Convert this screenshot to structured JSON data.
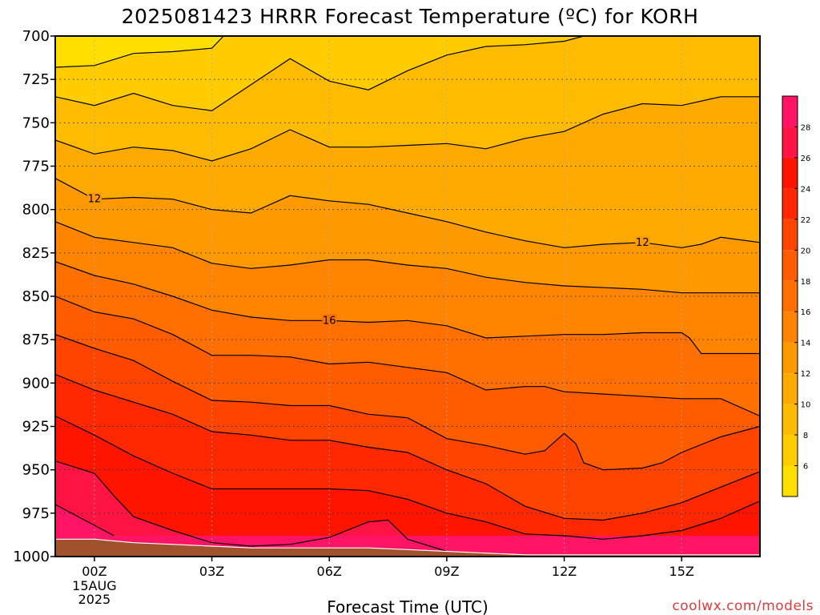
{
  "chart_data": {
    "type": "heatmap",
    "title": "2025081423 HRRR Forecast Temperature (ºC) for KORH",
    "xlabel": "Forecast Time (UTC)",
    "ylabel": "",
    "x_ticks": [
      {
        "hour": 0,
        "label": "00Z",
        "sub": [
          "15AUG",
          "2025"
        ]
      },
      {
        "hour": 3,
        "label": "03Z"
      },
      {
        "hour": 6,
        "label": "06Z"
      },
      {
        "hour": 9,
        "label": "09Z"
      },
      {
        "hour": 12,
        "label": "12Z"
      },
      {
        "hour": 15,
        "label": "15Z"
      }
    ],
    "xlim": [
      -1,
      17
    ],
    "y_ticks": [
      700,
      725,
      750,
      775,
      800,
      825,
      850,
      875,
      900,
      925,
      950,
      975,
      1000
    ],
    "ylim": [
      1000,
      700
    ],
    "grid": "dotted",
    "colorbar": {
      "position": "right",
      "ticks": [
        6,
        8,
        10,
        12,
        14,
        16,
        18,
        20,
        22,
        24,
        26,
        28
      ],
      "range": [
        4,
        30
      ],
      "colors": [
        "#ffdf00",
        "#ffcc00",
        "#ffbb00",
        "#ffaa00",
        "#ff9900",
        "#ff8500",
        "#ff7000",
        "#ff5c00",
        "#ff4400",
        "#ff2800",
        "#ff1400",
        "#ff1444",
        "#ff1466",
        "#ff1188",
        "#ff11aa"
      ]
    },
    "contour_interval": 2,
    "contour_labels": [
      {
        "value": 12,
        "hour": 0,
        "pressure": 794
      },
      {
        "value": 12,
        "hour": 14,
        "pressure": 819
      },
      {
        "value": 16,
        "hour": 6,
        "pressure": 864
      }
    ],
    "series": [
      {
        "value": 6,
        "points": [
          [
            -1,
            718
          ],
          [
            0,
            717
          ],
          [
            1,
            710
          ],
          [
            2,
            709
          ],
          [
            3,
            707
          ],
          [
            3.3,
            700
          ]
        ]
      },
      {
        "value": 8,
        "points": [
          [
            -1,
            735
          ],
          [
            0,
            740
          ],
          [
            1,
            733
          ],
          [
            2,
            740
          ],
          [
            3,
            743
          ],
          [
            4,
            728
          ],
          [
            5,
            713
          ],
          [
            6,
            726
          ],
          [
            7,
            731
          ],
          [
            8,
            720
          ],
          [
            9,
            711
          ],
          [
            10,
            706
          ],
          [
            11,
            705
          ],
          [
            12,
            703
          ],
          [
            12.5,
            700
          ]
        ]
      },
      {
        "value": 10,
        "points": [
          [
            -1,
            760
          ],
          [
            0,
            768
          ],
          [
            1,
            764
          ],
          [
            2,
            766
          ],
          [
            3,
            772
          ],
          [
            4,
            765
          ],
          [
            5,
            754
          ],
          [
            6,
            764
          ],
          [
            7,
            764
          ],
          [
            8,
            763
          ],
          [
            9,
            762
          ],
          [
            10,
            765
          ],
          [
            11,
            759
          ],
          [
            12,
            755
          ],
          [
            13,
            745
          ],
          [
            14,
            739
          ],
          [
            15,
            740
          ],
          [
            16,
            735
          ],
          [
            17,
            735
          ]
        ]
      },
      {
        "value": 12,
        "points": [
          [
            -1,
            782
          ],
          [
            0,
            794
          ],
          [
            1,
            793
          ],
          [
            2,
            794
          ],
          [
            3,
            800
          ],
          [
            4,
            802
          ],
          [
            5,
            792
          ],
          [
            6,
            795
          ],
          [
            7,
            797
          ],
          [
            8,
            802
          ],
          [
            9,
            807
          ],
          [
            10,
            813
          ],
          [
            11,
            818
          ],
          [
            12,
            822
          ],
          [
            13,
            820
          ],
          [
            14,
            819
          ],
          [
            15,
            822
          ],
          [
            15.5,
            820
          ],
          [
            16,
            816
          ],
          [
            17,
            819
          ]
        ]
      },
      {
        "value": 14,
        "points": [
          [
            -1,
            807
          ],
          [
            0,
            816
          ],
          [
            1,
            819
          ],
          [
            2,
            822
          ],
          [
            3,
            831
          ],
          [
            4,
            834
          ],
          [
            5,
            832
          ],
          [
            6,
            829
          ],
          [
            7,
            829
          ],
          [
            8,
            832
          ],
          [
            9,
            834
          ],
          [
            10,
            839
          ],
          [
            11,
            842
          ],
          [
            12,
            844
          ],
          [
            14,
            846
          ],
          [
            15,
            848
          ],
          [
            16,
            848
          ],
          [
            17,
            848
          ]
        ]
      },
      {
        "value": 16,
        "points": [
          [
            -1,
            830
          ],
          [
            0,
            838
          ],
          [
            1,
            843
          ],
          [
            2,
            850
          ],
          [
            3,
            858
          ],
          [
            4,
            862
          ],
          [
            5,
            864
          ],
          [
            6,
            864
          ],
          [
            7,
            865
          ],
          [
            8,
            864
          ],
          [
            9,
            867
          ],
          [
            10,
            874
          ],
          [
            11,
            873
          ],
          [
            12,
            872
          ],
          [
            13,
            872
          ],
          [
            14,
            871
          ],
          [
            15,
            871
          ],
          [
            15.2,
            874
          ],
          [
            15.5,
            883
          ],
          [
            16,
            883
          ],
          [
            17,
            883
          ]
        ]
      },
      {
        "value": 18,
        "points": [
          [
            -1,
            850
          ],
          [
            0,
            859
          ],
          [
            1,
            863
          ],
          [
            2,
            872
          ],
          [
            3,
            884
          ],
          [
            4,
            884
          ],
          [
            5,
            885
          ],
          [
            6,
            889
          ],
          [
            7,
            888
          ],
          [
            8,
            891
          ],
          [
            9,
            894
          ],
          [
            10,
            904
          ],
          [
            11,
            902
          ],
          [
            11.5,
            902
          ],
          [
            12,
            905
          ],
          [
            15,
            909
          ],
          [
            16,
            909
          ],
          [
            17,
            919
          ]
        ]
      },
      {
        "value": 20,
        "points": [
          [
            -1,
            872
          ],
          [
            0,
            880
          ],
          [
            1,
            887
          ],
          [
            2,
            899
          ],
          [
            3,
            910
          ],
          [
            4,
            911
          ],
          [
            5,
            913
          ],
          [
            6,
            913
          ],
          [
            7,
            918
          ],
          [
            8,
            920
          ],
          [
            9,
            932
          ],
          [
            10,
            936
          ],
          [
            11,
            941
          ],
          [
            11.5,
            939
          ],
          [
            12,
            929
          ],
          [
            12.3,
            935
          ],
          [
            12.5,
            946
          ],
          [
            13,
            950
          ],
          [
            14,
            949
          ],
          [
            14.5,
            946
          ],
          [
            15,
            940
          ],
          [
            16,
            931
          ],
          [
            17,
            925
          ]
        ]
      },
      {
        "value": 22,
        "points": [
          [
            -1,
            895
          ],
          [
            0,
            904
          ],
          [
            1,
            911
          ],
          [
            2,
            918
          ],
          [
            3,
            928
          ],
          [
            4,
            930
          ],
          [
            5,
            933
          ],
          [
            6,
            933
          ],
          [
            7,
            937
          ],
          [
            8,
            940
          ],
          [
            9,
            950
          ],
          [
            10,
            958
          ],
          [
            11,
            971
          ],
          [
            12,
            978
          ],
          [
            13,
            979
          ],
          [
            14,
            975
          ],
          [
            15,
            969
          ],
          [
            16,
            960
          ],
          [
            17,
            951
          ]
        ]
      },
      {
        "value": 24,
        "points": [
          [
            -1,
            919
          ],
          [
            0,
            930
          ],
          [
            1,
            942
          ],
          [
            2,
            952
          ],
          [
            3,
            961
          ],
          [
            4,
            961
          ],
          [
            5,
            961
          ],
          [
            6,
            961
          ],
          [
            7,
            962
          ],
          [
            8,
            967
          ],
          [
            9,
            975
          ],
          [
            10,
            980
          ],
          [
            11,
            987
          ],
          [
            12,
            988
          ],
          [
            13,
            990
          ],
          [
            14,
            988
          ],
          [
            15,
            985
          ],
          [
            16,
            978
          ],
          [
            17,
            968
          ]
        ]
      },
      {
        "value": 26,
        "points": [
          [
            -1,
            945
          ],
          [
            0,
            952
          ],
          [
            0.5,
            965
          ],
          [
            1,
            977
          ],
          [
            2,
            985
          ],
          [
            3,
            992
          ],
          [
            4,
            994
          ],
          [
            5,
            993
          ],
          [
            6,
            989
          ],
          [
            7,
            980
          ],
          [
            7.5,
            979
          ],
          [
            8,
            990
          ],
          [
            9,
            997
          ],
          [
            10,
            998
          ]
        ]
      },
      {
        "value": 28,
        "points": [
          [
            -1,
            970
          ],
          [
            0,
            982
          ],
          [
            0.5,
            988
          ]
        ]
      }
    ],
    "ground": {
      "points": [
        [
          -1,
          990
        ],
        [
          0,
          990
        ],
        [
          1,
          992
        ],
        [
          2,
          993
        ],
        [
          3,
          994
        ],
        [
          4,
          995
        ],
        [
          5,
          995
        ],
        [
          6,
          995
        ],
        [
          7,
          995
        ],
        [
          8,
          996
        ],
        [
          9,
          997
        ],
        [
          10,
          998
        ],
        [
          11,
          999
        ],
        [
          12,
          999
        ],
        [
          13,
          999
        ],
        [
          14,
          999
        ],
        [
          15,
          999
        ],
        [
          16,
          999
        ],
        [
          17,
          999
        ]
      ]
    }
  },
  "credit": "coolwx.com/models"
}
